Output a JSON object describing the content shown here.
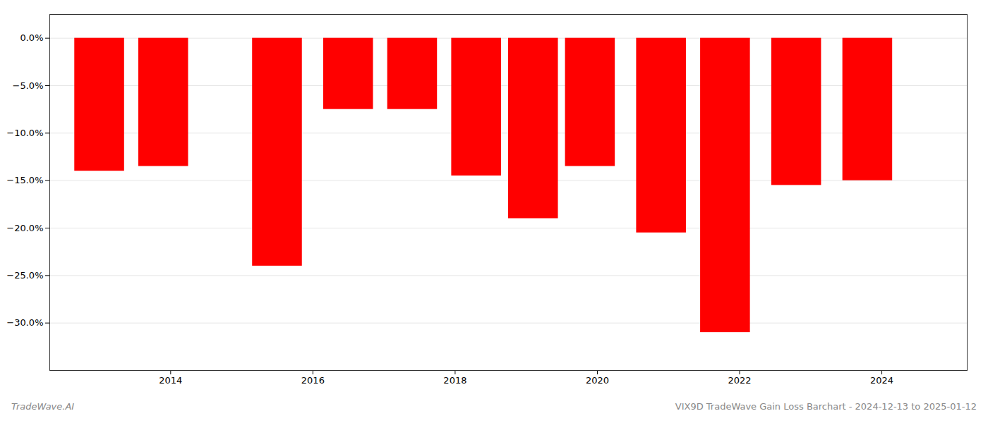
{
  "chart_data": {
    "type": "bar",
    "title": "VIX9D TradeWave Gain Loss Barchart - 2024-12-13 to 2025-01-12",
    "annotations": [
      "TradeWave.AI"
    ],
    "x": [
      2013,
      2013.9,
      2015.5,
      2016.5,
      2017.4,
      2018.3,
      2019.1,
      2019.9,
      2020.9,
      2021.8,
      2022.8,
      2023.8
    ],
    "values": [
      -14.0,
      -13.5,
      -24.0,
      -7.5,
      -7.5,
      -14.5,
      -19.0,
      -13.5,
      -20.5,
      -31.0,
      -15.5,
      -15.0
    ],
    "color": "#ff0000",
    "xlim": [
      2012.3,
      2025.2
    ],
    "ylim": [
      -35.0,
      2.5
    ],
    "xticks": [
      2014,
      2016,
      2018,
      2020,
      2022,
      2024
    ],
    "yticks": [
      {
        "value": 0.0,
        "label": "0.0%"
      },
      {
        "value": -5.0,
        "label": "−5.0%"
      },
      {
        "value": -10.0,
        "label": "−10.0%"
      },
      {
        "value": -15.0,
        "label": "−15.0%"
      },
      {
        "value": -20.0,
        "label": "−20.0%"
      },
      {
        "value": -25.0,
        "label": "−25.0%"
      },
      {
        "value": -30.0,
        "label": "−30.0%"
      }
    ],
    "grid": true
  }
}
